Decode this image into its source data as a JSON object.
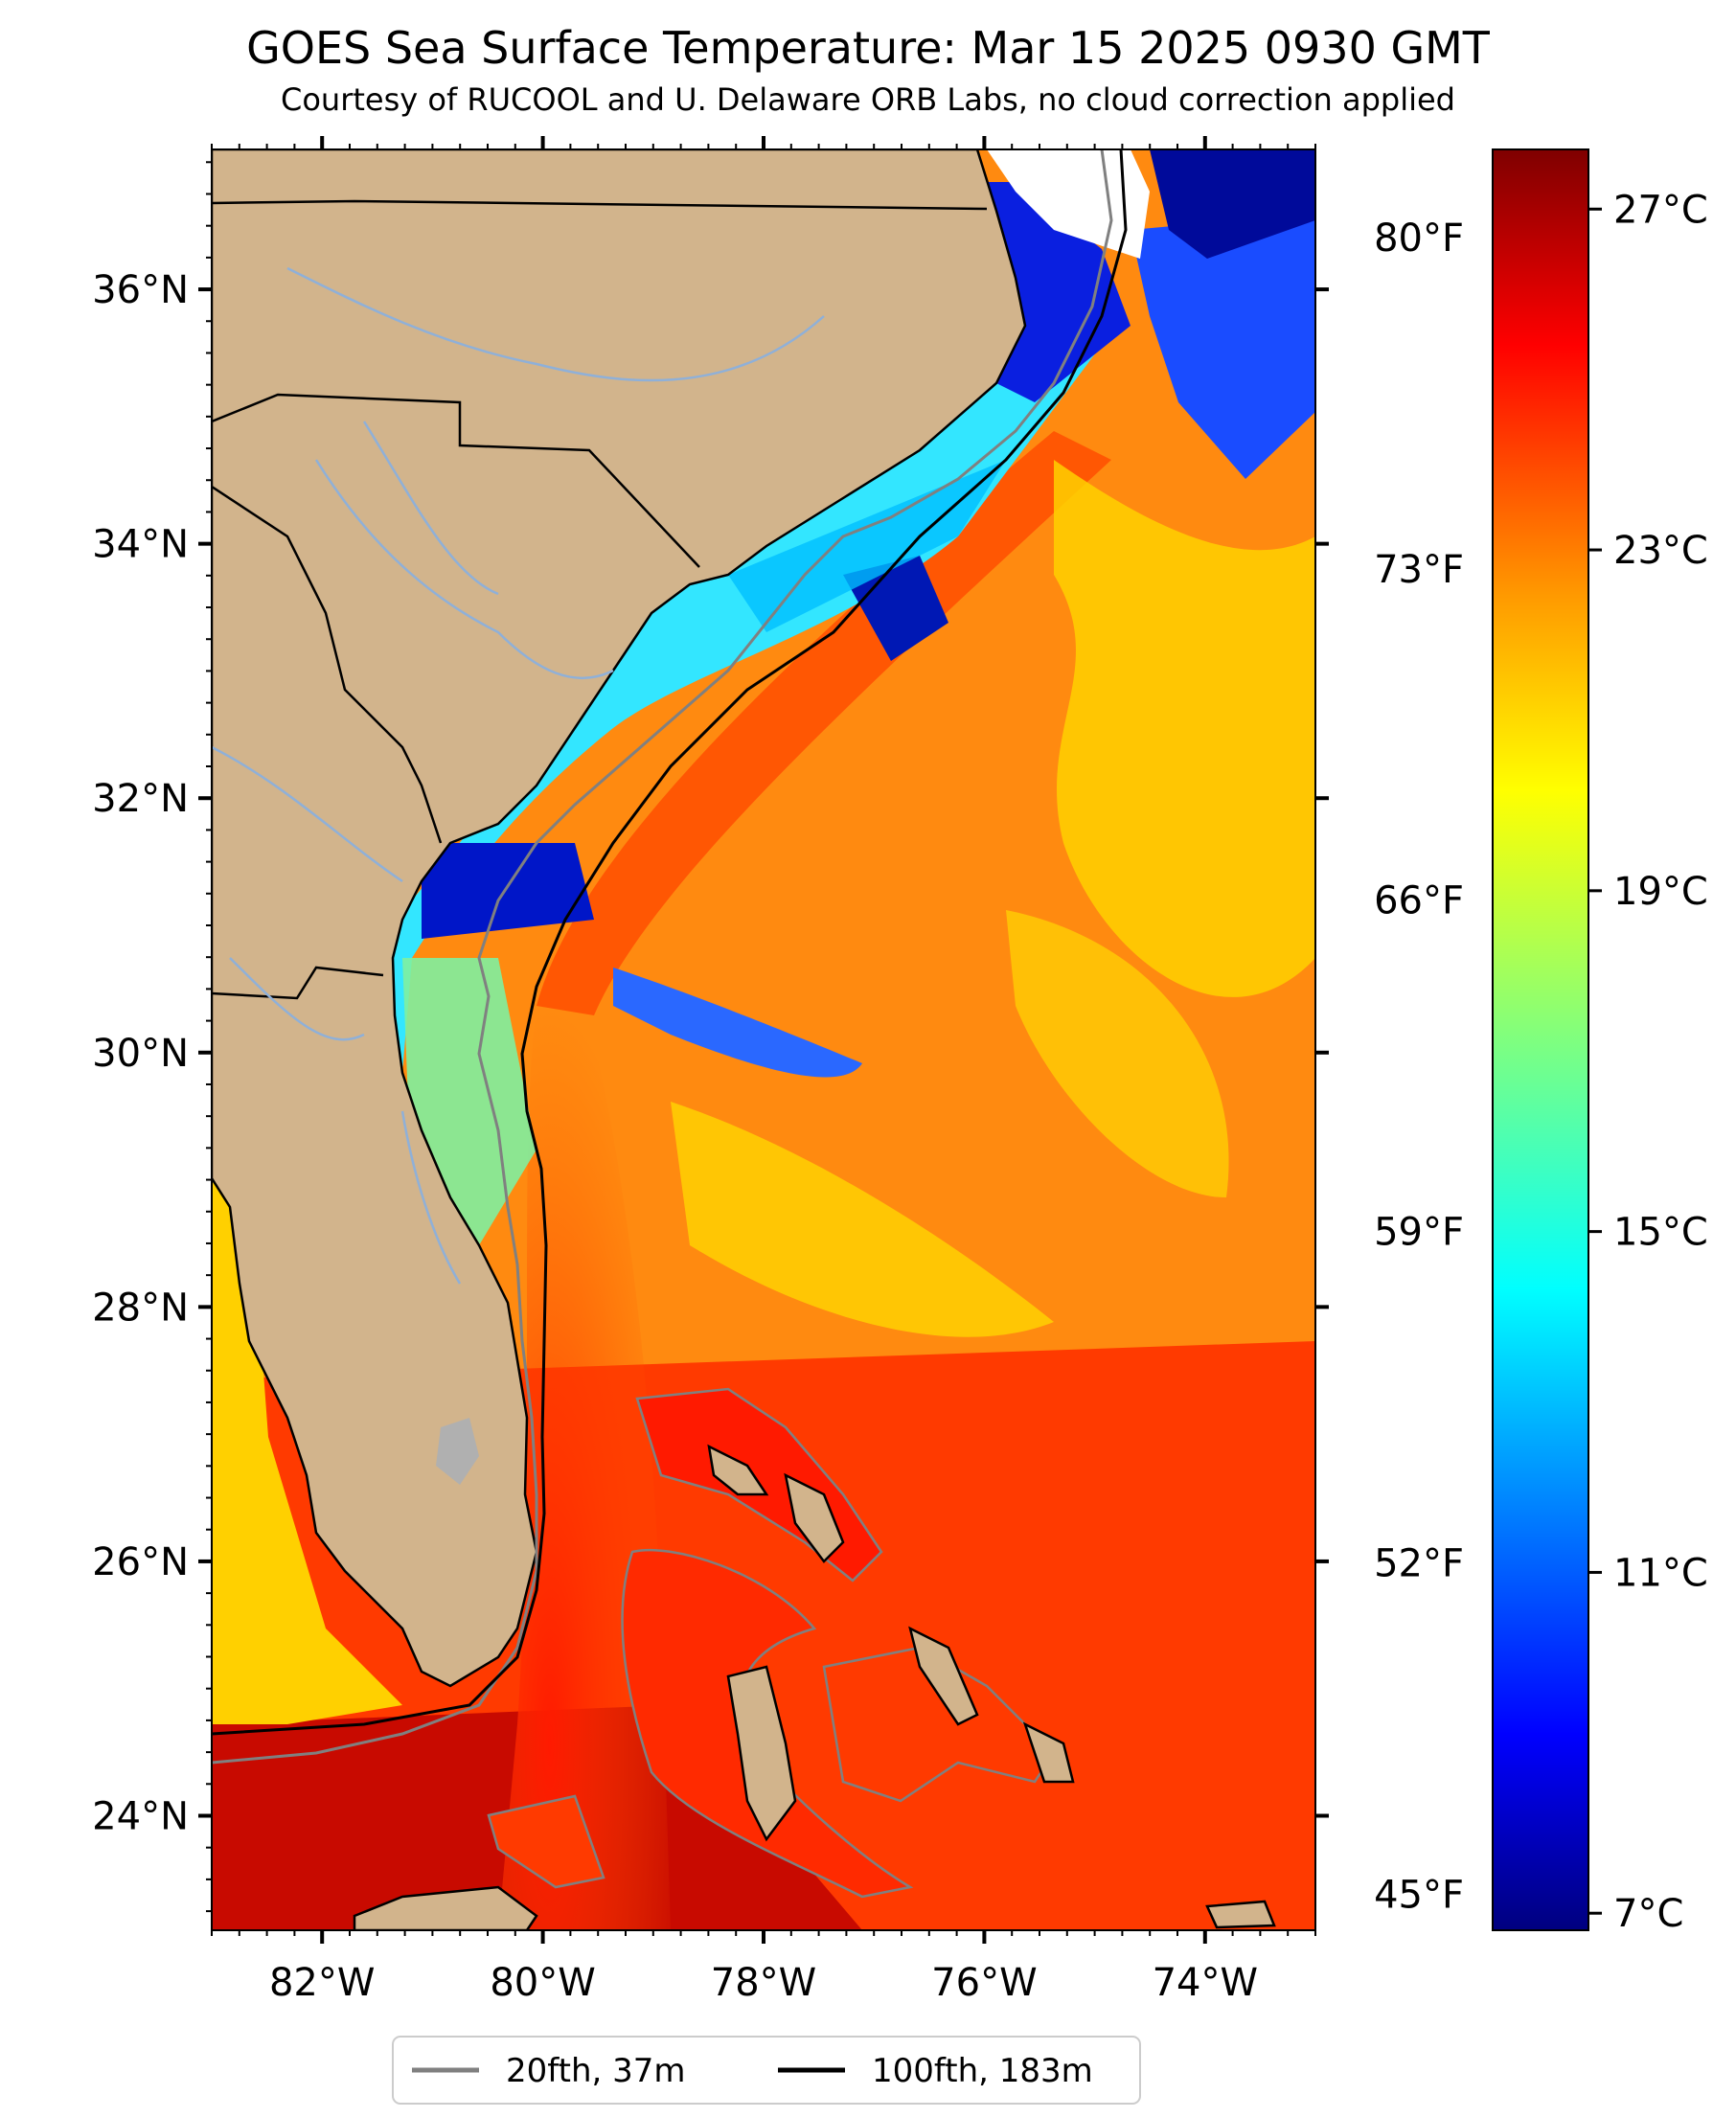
{
  "title": "GOES Sea Surface Temperature: Mar 15 2025 0930 GMT",
  "subtitle": "Courtesy of RUCOOL and U. Delaware ORB Labs, no cloud correction applied",
  "map": {
    "lon_range": [
      -83,
      -73
    ],
    "lat_range": [
      23.1,
      37.1
    ],
    "lat_ticks": [
      {
        "value": 24,
        "label": "24°N"
      },
      {
        "value": 26,
        "label": "26°N"
      },
      {
        "value": 28,
        "label": "28°N"
      },
      {
        "value": 30,
        "label": "30°N"
      },
      {
        "value": 32,
        "label": "32°N"
      },
      {
        "value": 34,
        "label": "34°N"
      },
      {
        "value": 36,
        "label": "36°N"
      }
    ],
    "lon_ticks": [
      {
        "value": -82,
        "label": "82°W"
      },
      {
        "value": -80,
        "label": "80°W"
      },
      {
        "value": -78,
        "label": "78°W"
      },
      {
        "value": -76,
        "label": "76°W"
      },
      {
        "value": -74,
        "label": "74°W"
      }
    ],
    "colors": {
      "land": "#d2b48c",
      "coast": "#000000",
      "rivers": "#8fb0d8",
      "contour_20fth": "#808080",
      "contour_100fth": "#000000"
    }
  },
  "colorbar": {
    "vmin_c": 6.8,
    "vmax_c": 27.7,
    "celsius_ticks": [
      {
        "value": 7,
        "label": "7°C"
      },
      {
        "value": 11,
        "label": "11°C"
      },
      {
        "value": 15,
        "label": "15°C"
      },
      {
        "value": 19,
        "label": "19°C"
      },
      {
        "value": 23,
        "label": "23°C"
      },
      {
        "value": 27,
        "label": "27°C"
      }
    ],
    "fahrenheit_ticks": [
      {
        "value": 45,
        "label": "45°F"
      },
      {
        "value": 52,
        "label": "52°F"
      },
      {
        "value": 59,
        "label": "59°F"
      },
      {
        "value": 66,
        "label": "66°F"
      },
      {
        "value": 73,
        "label": "73°F"
      },
      {
        "value": 80,
        "label": "80°F"
      }
    ],
    "colormap": [
      "#00007f",
      "#0000ff",
      "#007fff",
      "#00ffff",
      "#7fff7f",
      "#ffff00",
      "#ff7f00",
      "#ff0000",
      "#7f0000"
    ]
  },
  "legend": {
    "items": [
      {
        "label": "20fth, 37m",
        "color": "#808080"
      },
      {
        "label": "100fth, 183m",
        "color": "#000000"
      }
    ]
  }
}
